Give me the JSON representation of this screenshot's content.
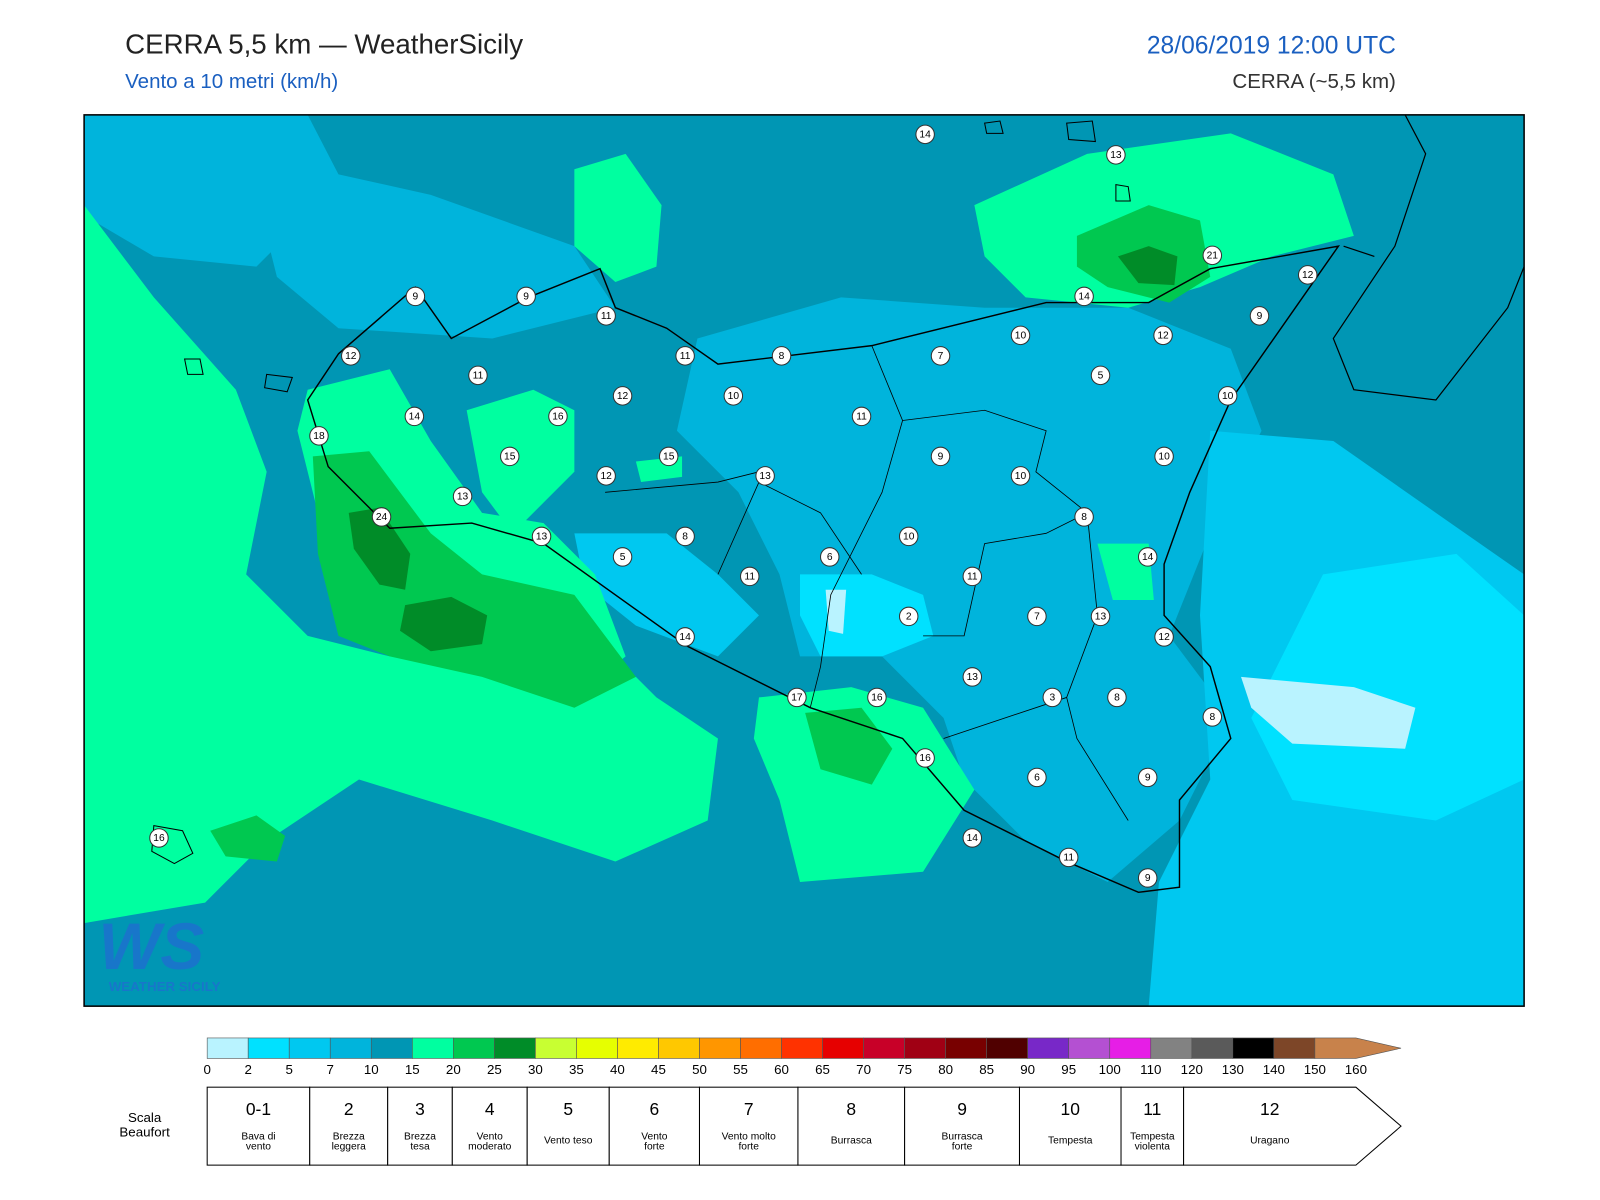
{
  "header": {
    "title": "CERRA 5,5 km — WeatherSicily",
    "subtitle": "Vento a 10 metri (km/h)",
    "datetime": "28/06/2019 12:00 UTC",
    "model": "CERRA (~5,5 km)"
  },
  "logo": {
    "mark": "WS",
    "text": "WEATHER SICILY"
  },
  "stations": [
    14,
    13,
    21,
    12,
    14,
    9,
    10,
    12,
    7,
    5,
    10,
    9,
    9,
    11,
    12,
    11,
    8,
    11,
    12,
    10,
    14,
    16,
    11,
    18,
    15,
    15,
    9,
    10,
    12,
    13,
    10,
    13,
    8,
    24,
    13,
    8,
    10,
    5,
    6,
    14,
    11,
    11,
    2,
    7,
    13,
    14,
    12,
    13,
    17,
    16,
    3,
    8,
    8,
    16,
    6,
    9,
    16,
    14,
    11,
    9
  ],
  "color_scale": {
    "ticks": [
      0,
      2,
      5,
      7,
      10,
      15,
      20,
      25,
      30,
      35,
      40,
      45,
      50,
      55,
      60,
      65,
      70,
      75,
      80,
      85,
      90,
      95,
      100,
      110,
      120,
      130,
      140,
      150,
      160
    ],
    "colors": [
      "#b9f3ff",
      "#00e1ff",
      "#00c8f0",
      "#00b4dc",
      "#0096b4",
      "#00ffa0",
      "#00c850",
      "#008c28",
      "#c8ff32",
      "#e6ff00",
      "#ffeb00",
      "#ffc800",
      "#ff9600",
      "#ff6e00",
      "#ff3200",
      "#e60000",
      "#c80028",
      "#a00014",
      "#780000",
      "#500000",
      "#7828c8",
      "#b450d2",
      "#e61ee6",
      "#828282",
      "#5a5a5a",
      "#000000",
      "#7d4628",
      "#c8824b"
    ]
  },
  "beaufort": {
    "label": "Scala Beaufort",
    "levels": [
      {
        "level": "0-1",
        "name": "Bava di vento"
      },
      {
        "level": "2",
        "name": "Brezza leggera"
      },
      {
        "level": "3",
        "name": "Brezza tesa"
      },
      {
        "level": "4",
        "name": "Vento moderato"
      },
      {
        "level": "5",
        "name": "Vento teso"
      },
      {
        "level": "6",
        "name": "Vento forte"
      },
      {
        "level": "7",
        "name": "Vento molto forte"
      },
      {
        "level": "8",
        "name": "Burrasca"
      },
      {
        "level": "9",
        "name": "Burrasca forte"
      },
      {
        "level": "10",
        "name": "Tempesta"
      },
      {
        "level": "11",
        "name": "Tempesta violenta"
      },
      {
        "level": "12",
        "name": "Uragano"
      }
    ]
  }
}
